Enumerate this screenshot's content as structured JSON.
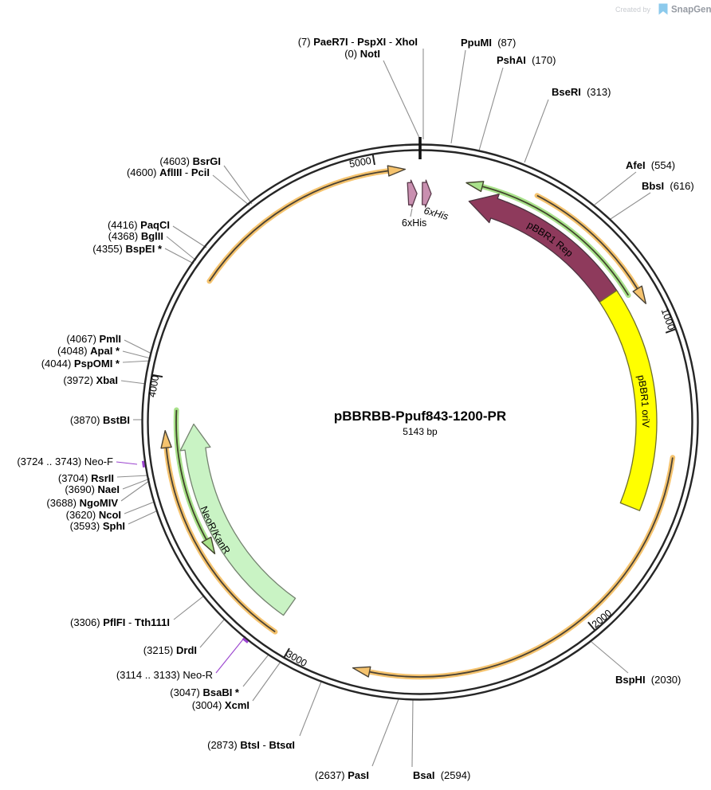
{
  "watermark": {
    "created_by": "Created by",
    "brand": "SnapGene"
  },
  "plasmid": {
    "name": "pBBRBB-Ppuf843-1200-PR",
    "size_label": "5143 bp",
    "total_bp": 5143
  },
  "ticks": [
    {
      "bp": 1000,
      "label": "1000"
    },
    {
      "bp": 2000,
      "label": "2000"
    },
    {
      "bp": 3000,
      "label": "3000"
    },
    {
      "bp": 4000,
      "label": "4000"
    },
    {
      "bp": 5000,
      "label": "5000"
    }
  ],
  "features": [
    {
      "id": "rep",
      "label": "pBBR1 Rep",
      "start": 178,
      "end": 810,
      "direction": "ccw",
      "fill": "#8e3a5c",
      "outline": "#4c3440",
      "label_color": "#ffffff"
    },
    {
      "id": "oriv",
      "label": "pBBR1 oriV",
      "start": 803,
      "end": 1600,
      "direction": "none",
      "fill": "#ffff00",
      "outline": "#6f6f2a",
      "label_color": "#111111"
    },
    {
      "id": "neo",
      "label": "NeoR/KanR",
      "start": 3075,
      "end": 3850,
      "direction": "cw",
      "fill": "#c9f3c4",
      "outline": "#74826f",
      "label_color": "#222222"
    },
    {
      "id": "his-left",
      "label": "6xHis",
      "start": 5100,
      "end": 5132,
      "direction": "cw",
      "fill": "#c98fb0",
      "outline": "#59394a"
    },
    {
      "id": "his-right",
      "label": "6xHis",
      "start": 8,
      "end": 40,
      "direction": "cw",
      "fill": "#c98fb0",
      "outline": "#59394a"
    }
  ],
  "orf_arrows": [
    {
      "id": "orf-green-right",
      "tail": 838,
      "head": 156,
      "halo": "#a9e28b",
      "core": "#41452c"
    },
    {
      "id": "orf-green-left",
      "tail": 3898,
      "head": 3390,
      "halo": "#a9e28b",
      "core": "#41452c"
    },
    {
      "id": "orf-orange-a",
      "tail": 4340,
      "head": 5095,
      "halo": "#f5c36e",
      "core": "#4a4234"
    },
    {
      "id": "orf-orange-b",
      "tail": 390,
      "head": 890,
      "halo": "#f5c36e",
      "core": "#4a4234"
    },
    {
      "id": "orf-orange-c",
      "tail": 1400,
      "head": 2790,
      "halo": "#f5c36e",
      "core": "#4a4234"
    },
    {
      "id": "orf-orange-d",
      "tail": 3066,
      "head": 3830,
      "halo": "#f5c36e",
      "core": "#4a4234"
    }
  ],
  "primers": [
    {
      "id": "neo-f",
      "label": "Neo-F",
      "start": 3724,
      "end": 3743,
      "color": "#9b44cf"
    },
    {
      "id": "neo-r",
      "label": "Neo-R",
      "start": 3114,
      "end": 3133,
      "color": "#9b44cf"
    }
  ],
  "enzymes": [
    {
      "id": "paer7i",
      "parts": [
        {
          "t": "(7) "
        },
        {
          "t": "PaeR7I",
          "b": 1
        },
        {
          "t": " - "
        },
        {
          "t": "PspXI",
          "b": 1
        },
        {
          "t": " - "
        },
        {
          "t": "XhoI",
          "b": 1
        }
      ]
    },
    {
      "id": "noti",
      "parts": [
        {
          "t": "(0) "
        },
        {
          "t": "NotI",
          "b": 1
        }
      ]
    },
    {
      "id": "ppumi",
      "parts": [
        {
          "t": "PpuMI",
          "b": 1
        },
        {
          "t": "  (87)"
        }
      ]
    },
    {
      "id": "pshai",
      "parts": [
        {
          "t": "PshAI",
          "b": 1
        },
        {
          "t": "  (170)"
        }
      ]
    },
    {
      "id": "bseri",
      "parts": [
        {
          "t": "BseRI",
          "b": 1
        },
        {
          "t": "  (313)"
        }
      ]
    },
    {
      "id": "afei",
      "parts": [
        {
          "t": "AfeI",
          "b": 1
        },
        {
          "t": "  (554)"
        }
      ]
    },
    {
      "id": "bbsi",
      "parts": [
        {
          "t": "BbsI",
          "b": 1
        },
        {
          "t": "  (616)"
        }
      ]
    },
    {
      "id": "bsphi",
      "parts": [
        {
          "t": "BspHI",
          "b": 1
        },
        {
          "t": "  (2030)"
        }
      ]
    },
    {
      "id": "bsai",
      "parts": [
        {
          "t": "BsaI",
          "b": 1
        },
        {
          "t": "  (2594)"
        }
      ]
    },
    {
      "id": "pasi",
      "parts": [
        {
          "t": "(2637) "
        },
        {
          "t": "PasI",
          "b": 1
        }
      ]
    },
    {
      "id": "btsi",
      "parts": [
        {
          "t": "(2873) "
        },
        {
          "t": "BtsI",
          "b": 1
        },
        {
          "t": " - "
        },
        {
          "t": "BtsαI",
          "b": 1
        }
      ]
    },
    {
      "id": "xcmi",
      "parts": [
        {
          "t": "(3004) "
        },
        {
          "t": "XcmI",
          "b": 1
        }
      ]
    },
    {
      "id": "bsabi",
      "parts": [
        {
          "t": "(3047) "
        },
        {
          "t": "BsaBI *",
          "b": 1
        }
      ]
    },
    {
      "id": "neo-r-label",
      "color": "#9b44cf",
      "parts": [
        {
          "t": "(3114 .. 3133) "
        },
        {
          "t": "Neo-R"
        }
      ]
    },
    {
      "id": "drdi",
      "parts": [
        {
          "t": "(3215) "
        },
        {
          "t": "DrdI",
          "b": 1
        }
      ]
    },
    {
      "id": "pflfi",
      "parts": [
        {
          "t": "(3306) "
        },
        {
          "t": "PflFI",
          "b": 1
        },
        {
          "t": " - "
        },
        {
          "t": "Tth111I",
          "b": 1
        }
      ]
    },
    {
      "id": "sphi",
      "parts": [
        {
          "t": "(3593) "
        },
        {
          "t": "SphI",
          "b": 1
        }
      ]
    },
    {
      "id": "ncoi",
      "parts": [
        {
          "t": "(3620) "
        },
        {
          "t": "NcoI",
          "b": 1
        }
      ]
    },
    {
      "id": "ngomiv",
      "parts": [
        {
          "t": "(3688) "
        },
        {
          "t": "NgoMIV",
          "b": 1
        }
      ]
    },
    {
      "id": "naei",
      "parts": [
        {
          "t": "(3690) "
        },
        {
          "t": "NaeI",
          "b": 1
        }
      ]
    },
    {
      "id": "rsrii",
      "parts": [
        {
          "t": "(3704) "
        },
        {
          "t": "RsrII",
          "b": 1
        }
      ]
    },
    {
      "id": "neo-f-label",
      "color": "#9b44cf",
      "parts": [
        {
          "t": "(3724 .. 3743) "
        },
        {
          "t": "Neo-F"
        }
      ]
    },
    {
      "id": "bstbi",
      "parts": [
        {
          "t": "(3870) "
        },
        {
          "t": "BstBI",
          "b": 1
        }
      ]
    },
    {
      "id": "xbai",
      "parts": [
        {
          "t": "(3972) "
        },
        {
          "t": "XbaI",
          "b": 1
        }
      ]
    },
    {
      "id": "pspomi",
      "parts": [
        {
          "t": "(4044) "
        },
        {
          "t": "PspOMI *",
          "b": 1
        }
      ]
    },
    {
      "id": "apai",
      "parts": [
        {
          "t": "(4048) "
        },
        {
          "t": "ApaI *",
          "b": 1
        }
      ]
    },
    {
      "id": "pmli",
      "parts": [
        {
          "t": "(4067) "
        },
        {
          "t": "PmlI",
          "b": 1
        }
      ]
    },
    {
      "id": "bspei",
      "parts": [
        {
          "t": "(4355) "
        },
        {
          "t": "BspEI *",
          "b": 1
        }
      ]
    },
    {
      "id": "bglii",
      "parts": [
        {
          "t": "(4368) "
        },
        {
          "t": "BglII",
          "b": 1
        }
      ]
    },
    {
      "id": "paqci",
      "parts": [
        {
          "t": "(4416) "
        },
        {
          "t": "PaqCI",
          "b": 1
        }
      ]
    },
    {
      "id": "aflpci",
      "parts": [
        {
          "t": "(4600) "
        },
        {
          "t": "AflIII",
          "b": 1
        },
        {
          "t": " - "
        },
        {
          "t": "PciI",
          "b": 1
        }
      ]
    },
    {
      "id": "bsrgi",
      "parts": [
        {
          "t": "(4603) "
        },
        {
          "t": "BsrGI",
          "b": 1
        }
      ]
    }
  ]
}
